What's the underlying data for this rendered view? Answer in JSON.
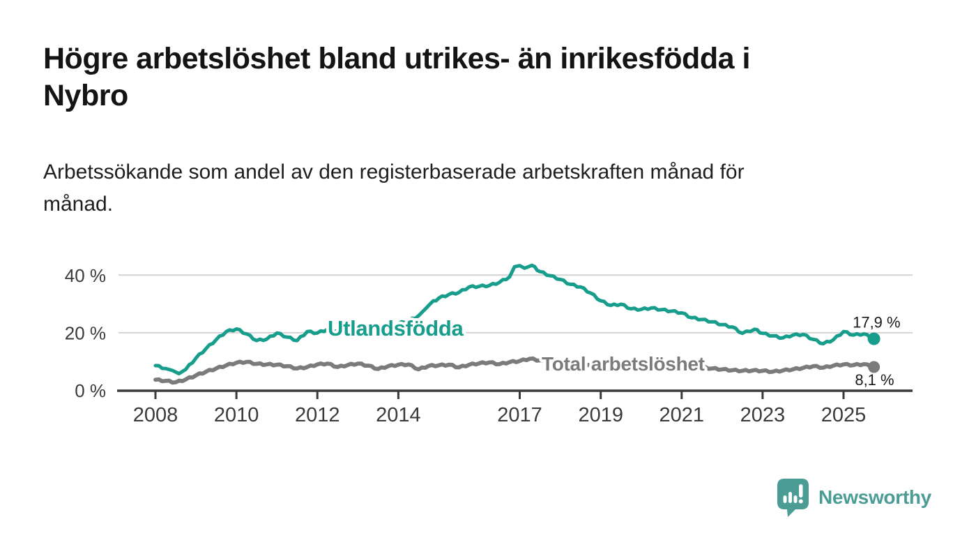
{
  "header": {
    "title_line1": "Högre arbetslöshet bland utrikes- än inrikesfödda i",
    "title_line2": "Nybro",
    "subtitle_line1": "Arbetssökande som andel av den registerbaserade arbetskraften månad för",
    "subtitle_line2": "månad."
  },
  "chart_data": {
    "type": "line",
    "title": "Högre arbetslöshet bland utrikes- än inrikesfödda i Nybro",
    "subtitle": "Arbetssökande som andel av den registerbaserade arbetskraften månad för månad.",
    "xlabel": "",
    "ylabel": "",
    "x_unit": "year (monthly series)",
    "xlim": [
      2007.05,
      2026.7
    ],
    "ylim": [
      0,
      45
    ],
    "grid": "horizontal",
    "x_ticks": [
      2008,
      2010,
      2012,
      2014,
      2017,
      2019,
      2021,
      2023,
      2025
    ],
    "y_ticks": [
      {
        "value": 0,
        "label": "0 %"
      },
      {
        "value": 20,
        "label": "20 %"
      },
      {
        "value": 40,
        "label": "40 %"
      }
    ],
    "series": [
      {
        "name": "Utlandsfödda",
        "color": "#169d8b",
        "end_value": 17.9,
        "end_label": "17,9 %",
        "points": [
          [
            2008.0,
            8.6
          ],
          [
            2008.25,
            7.6
          ],
          [
            2008.42,
            6.9
          ],
          [
            2008.58,
            5.8
          ],
          [
            2008.75,
            7.3
          ],
          [
            2009.0,
            11.2
          ],
          [
            2009.25,
            14.5
          ],
          [
            2009.5,
            17.6
          ],
          [
            2009.75,
            20.4
          ],
          [
            2010.0,
            21.3
          ],
          [
            2010.25,
            19.6
          ],
          [
            2010.5,
            17.3
          ],
          [
            2010.75,
            17.8
          ],
          [
            2011.0,
            19.9
          ],
          [
            2011.25,
            18.5
          ],
          [
            2011.5,
            17.3
          ],
          [
            2011.75,
            20.4
          ],
          [
            2012.0,
            19.9
          ],
          [
            2012.25,
            21.2
          ],
          [
            2012.5,
            20.6
          ],
          [
            2012.75,
            21.1
          ],
          [
            2013.0,
            21.8
          ],
          [
            2013.25,
            22.3
          ],
          [
            2013.5,
            21.9
          ],
          [
            2013.75,
            22.6
          ],
          [
            2014.0,
            23.2
          ],
          [
            2014.25,
            24.1
          ],
          [
            2014.5,
            25.9
          ],
          [
            2014.65,
            28.0
          ],
          [
            2014.8,
            30.2
          ],
          [
            2015.0,
            32.0
          ],
          [
            2015.25,
            33.3
          ],
          [
            2015.5,
            34.0
          ],
          [
            2015.75,
            35.9
          ],
          [
            2016.0,
            36.1
          ],
          [
            2016.25,
            36.4
          ],
          [
            2016.5,
            37.5
          ],
          [
            2016.75,
            39.4
          ],
          [
            2016.87,
            42.9
          ],
          [
            2017.0,
            43.3
          ],
          [
            2017.12,
            42.4
          ],
          [
            2017.3,
            43.4
          ],
          [
            2017.5,
            41.2
          ],
          [
            2017.75,
            39.8
          ],
          [
            2018.0,
            38.5
          ],
          [
            2018.25,
            36.8
          ],
          [
            2018.5,
            35.9
          ],
          [
            2018.75,
            33.8
          ],
          [
            2019.0,
            31.1
          ],
          [
            2019.25,
            29.5
          ],
          [
            2019.5,
            29.9
          ],
          [
            2019.75,
            28.3
          ],
          [
            2020.0,
            28.1
          ],
          [
            2020.25,
            28.6
          ],
          [
            2020.5,
            28.0
          ],
          [
            2020.75,
            27.5
          ],
          [
            2021.0,
            26.9
          ],
          [
            2021.25,
            25.2
          ],
          [
            2021.5,
            24.6
          ],
          [
            2021.75,
            23.8
          ],
          [
            2022.0,
            22.8
          ],
          [
            2022.25,
            22.0
          ],
          [
            2022.5,
            19.8
          ],
          [
            2022.8,
            21.2
          ],
          [
            2023.0,
            19.8
          ],
          [
            2023.25,
            18.9
          ],
          [
            2023.5,
            18.2
          ],
          [
            2023.75,
            19.2
          ],
          [
            2024.0,
            19.4
          ],
          [
            2024.25,
            17.7
          ],
          [
            2024.5,
            16.2
          ],
          [
            2024.75,
            17.6
          ],
          [
            2025.0,
            20.4
          ],
          [
            2025.25,
            19.2
          ],
          [
            2025.5,
            19.6
          ],
          [
            2025.75,
            17.9
          ]
        ]
      },
      {
        "name": "Total arbetslöshet",
        "color": "#7b7b7b",
        "end_value": 8.1,
        "end_label": "8,1 %",
        "points": [
          [
            2008.0,
            3.7
          ],
          [
            2008.25,
            3.3
          ],
          [
            2008.5,
            2.8
          ],
          [
            2008.75,
            3.8
          ],
          [
            2009.0,
            5.2
          ],
          [
            2009.25,
            6.5
          ],
          [
            2009.5,
            7.6
          ],
          [
            2009.75,
            8.7
          ],
          [
            2010.0,
            9.6
          ],
          [
            2010.25,
            9.9
          ],
          [
            2010.5,
            9.2
          ],
          [
            2010.75,
            9.0
          ],
          [
            2011.0,
            8.9
          ],
          [
            2011.25,
            8.4
          ],
          [
            2011.5,
            7.6
          ],
          [
            2011.75,
            8.1
          ],
          [
            2012.0,
            9.0
          ],
          [
            2012.25,
            9.3
          ],
          [
            2012.5,
            8.1
          ],
          [
            2012.75,
            8.8
          ],
          [
            2013.0,
            9.3
          ],
          [
            2013.25,
            8.6
          ],
          [
            2013.5,
            7.4
          ],
          [
            2013.75,
            8.4
          ],
          [
            2014.0,
            8.9
          ],
          [
            2014.25,
            9.0
          ],
          [
            2014.5,
            7.3
          ],
          [
            2014.75,
            8.5
          ],
          [
            2015.0,
            8.7
          ],
          [
            2015.25,
            8.9
          ],
          [
            2015.5,
            8.0
          ],
          [
            2015.75,
            8.9
          ],
          [
            2016.0,
            9.4
          ],
          [
            2016.25,
            9.7
          ],
          [
            2016.5,
            9.1
          ],
          [
            2016.75,
            9.8
          ],
          [
            2017.0,
            10.2
          ],
          [
            2017.25,
            11.0
          ],
          [
            2017.5,
            10.4
          ],
          [
            2017.75,
            9.9
          ],
          [
            2018.0,
            9.6
          ],
          [
            2018.25,
            9.4
          ],
          [
            2018.5,
            8.9
          ],
          [
            2018.75,
            9.0
          ],
          [
            2019.0,
            8.7
          ],
          [
            2019.25,
            8.4
          ],
          [
            2019.5,
            8.6
          ],
          [
            2019.75,
            8.8
          ],
          [
            2020.0,
            9.0
          ],
          [
            2020.25,
            9.8
          ],
          [
            2020.5,
            9.6
          ],
          [
            2020.75,
            9.3
          ],
          [
            2021.0,
            9.0
          ],
          [
            2021.25,
            8.6
          ],
          [
            2021.5,
            8.0
          ],
          [
            2021.75,
            7.6
          ],
          [
            2022.0,
            7.3
          ],
          [
            2022.25,
            7.0
          ],
          [
            2022.5,
            6.8
          ],
          [
            2022.75,
            6.9
          ],
          [
            2023.0,
            6.8
          ],
          [
            2023.25,
            6.5
          ],
          [
            2023.5,
            6.9
          ],
          [
            2023.75,
            7.3
          ],
          [
            2024.0,
            7.8
          ],
          [
            2024.25,
            8.4
          ],
          [
            2024.5,
            7.9
          ],
          [
            2024.75,
            8.6
          ],
          [
            2025.0,
            9.0
          ],
          [
            2025.25,
            8.8
          ],
          [
            2025.5,
            9.1
          ],
          [
            2025.75,
            8.1
          ]
        ]
      }
    ],
    "colors": {
      "grid": "#d4d4d4",
      "axis": "#3b3b3b",
      "tick_label": "#3a3a3a",
      "value_label": "#1a1a1a"
    }
  },
  "footer": {
    "brand": "Newsworthy",
    "brand_color": "#4a9c95",
    "logo_icon": "speech-bubble-bar-chart-icon"
  }
}
